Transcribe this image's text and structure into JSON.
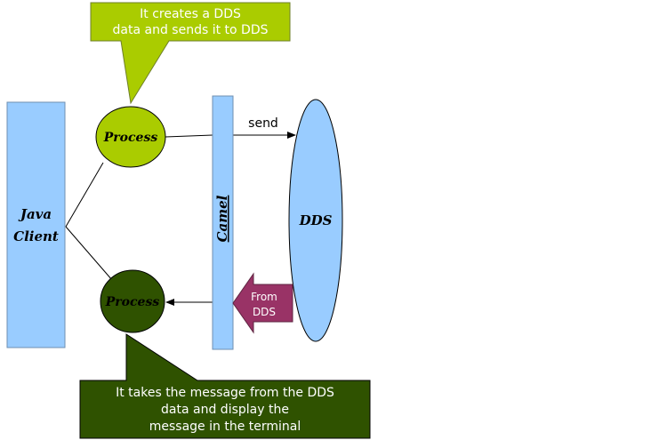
{
  "diagram": {
    "java_client_line1": "Java",
    "java_client_line2": "Client",
    "process_top": "Process",
    "process_bottom": "Process",
    "camel": "Camel",
    "dds": "DDS",
    "send_label": "send",
    "from_dds_line1": "From",
    "from_dds_line2": "DDS",
    "callout_top_line1": "It creates a DDS",
    "callout_top_line2": "data and sends it to DDS",
    "callout_bottom_line1": "It takes the message from the DDS",
    "callout_bottom_line2": "data and display the",
    "callout_bottom_line3": "message in the terminal"
  },
  "colors": {
    "light_blue": "#99ccff",
    "lime_green": "#aacc00",
    "dark_green": "#2f5200",
    "maroon": "#993366"
  }
}
